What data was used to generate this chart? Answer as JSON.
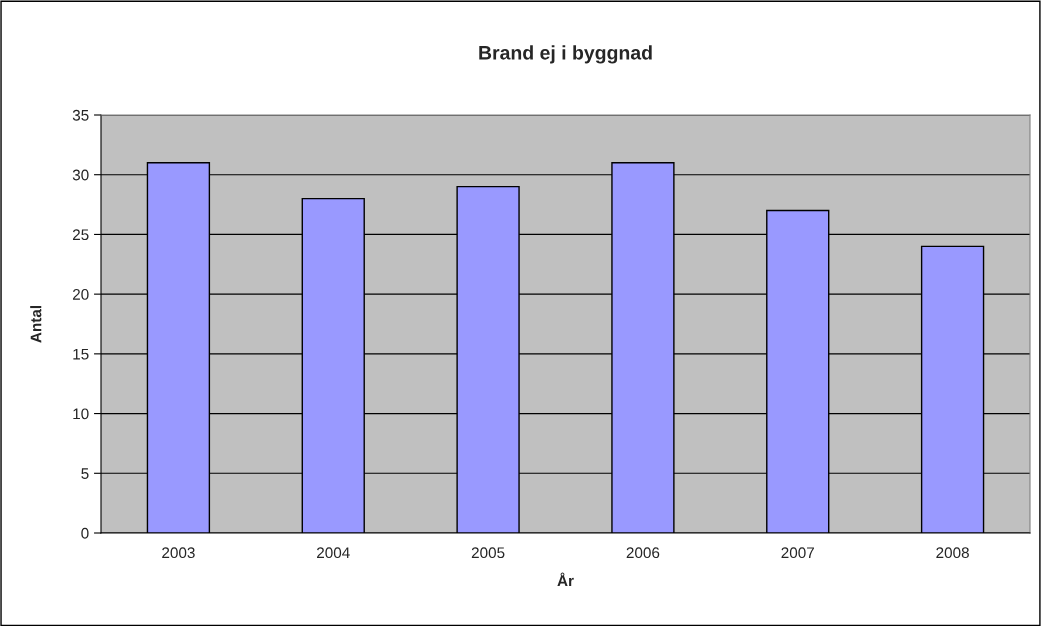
{
  "chart_data": {
    "type": "bar",
    "title": "Brand ej i byggnad",
    "xlabel": "År",
    "ylabel": "Antal",
    "categories": [
      "2003",
      "2004",
      "2005",
      "2006",
      "2007",
      "2008"
    ],
    "values": [
      31,
      28,
      29,
      31,
      27,
      24
    ],
    "color": "#9999ff",
    "ylim": [
      0,
      35
    ],
    "yticks": [
      0,
      5,
      10,
      15,
      20,
      25,
      30,
      35
    ],
    "grid": "y"
  }
}
